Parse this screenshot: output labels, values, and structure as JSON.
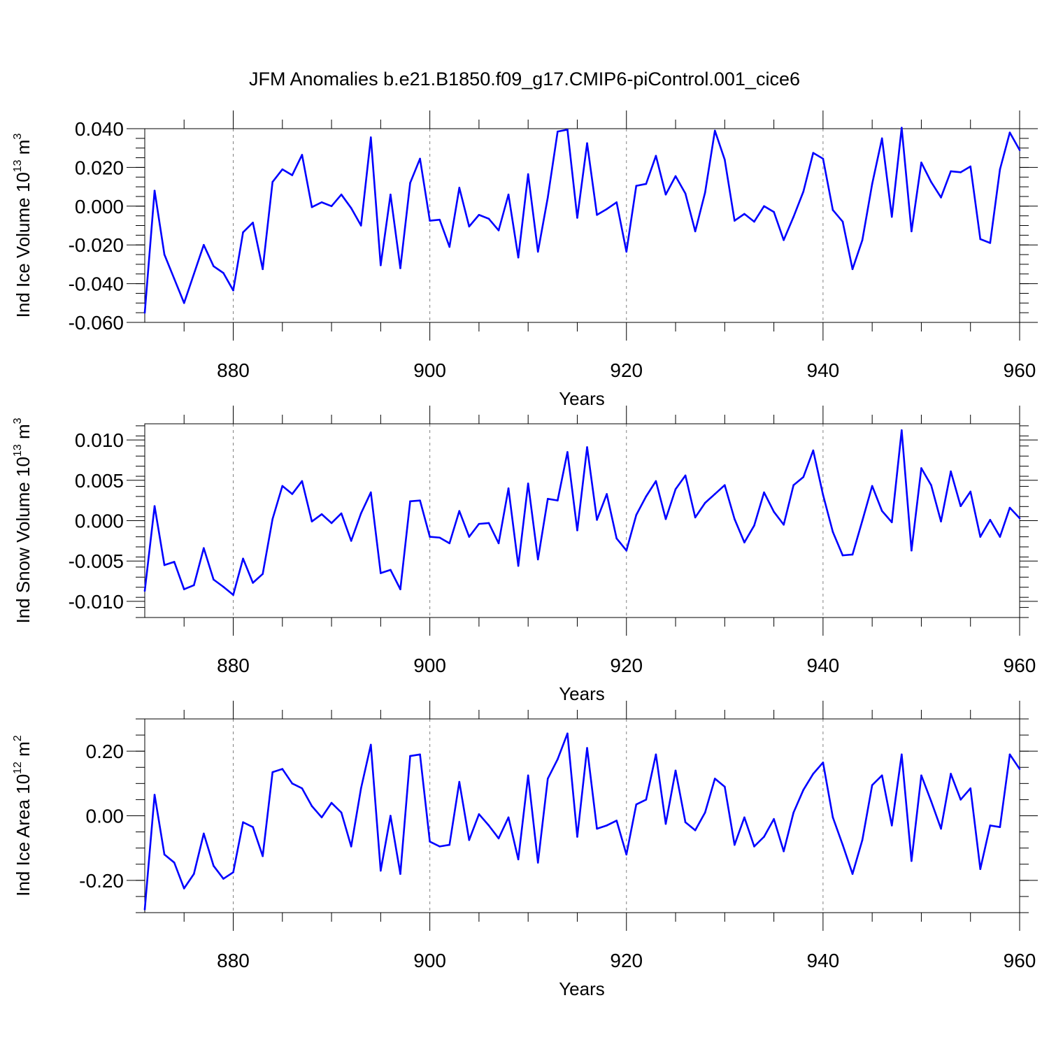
{
  "figure": {
    "title": "JFM Anomalies b.e21.B1850.f09_g17.CMIP6-piControl.001_cice6"
  },
  "colors": {
    "line": "#0000ff",
    "axis": "#000000",
    "grid": "#808080"
  },
  "chart_data": [
    {
      "type": "line",
      "ylabel_main": "Ind Ice Volume 10",
      "ylabel_exp": "13",
      "ylabel_unit": " m",
      "ylabel_unit_exp": "3",
      "xlabel": "Years",
      "xlim": [
        871,
        960
      ],
      "ylim": [
        -0.06,
        0.04
      ],
      "xticks": [
        880,
        900,
        920,
        940,
        960
      ],
      "xtick_labels": [
        "880",
        "900",
        "920",
        "940",
        "960"
      ],
      "yticks": [
        -0.06,
        -0.04,
        -0.02,
        0.0,
        0.02,
        0.04
      ],
      "ytick_labels": [
        "-0.060",
        "-0.040",
        "-0.020",
        "0.000",
        "0.020",
        "0.040"
      ],
      "grid_x": [
        880,
        900,
        920,
        940
      ],
      "x_start": 871,
      "values": [
        -0.055,
        0.008,
        -0.025,
        -0.0375,
        -0.05,
        -0.035,
        -0.02,
        -0.031,
        -0.0345,
        -0.0435,
        -0.0135,
        -0.0085,
        -0.0325,
        0.0125,
        0.019,
        0.016,
        0.0265,
        -0.0005,
        0.002,
        0.0,
        0.006,
        -0.001,
        -0.01,
        0.0355,
        -0.0305,
        0.006,
        -0.032,
        0.012,
        0.0245,
        -0.0075,
        -0.007,
        -0.021,
        0.0095,
        -0.0105,
        -0.0045,
        -0.0065,
        -0.0125,
        0.006,
        -0.0265,
        0.0165,
        -0.0235,
        0.0045,
        0.0385,
        0.0395,
        -0.006,
        0.0325,
        -0.0045,
        -0.0015,
        0.002,
        -0.0235,
        0.0105,
        0.0115,
        0.026,
        0.006,
        0.0155,
        0.0065,
        -0.013,
        0.007,
        0.039,
        0.024,
        -0.0075,
        -0.004,
        -0.008,
        0.0,
        -0.003,
        -0.0175,
        -0.0055,
        0.0075,
        0.0275,
        0.0245,
        -0.002,
        -0.008,
        -0.0325,
        -0.0175,
        0.0115,
        0.035,
        -0.0055,
        0.0405,
        -0.013,
        0.0225,
        0.0125,
        0.0045,
        0.018,
        0.0175,
        0.0205,
        -0.017,
        -0.019,
        0.019,
        0.038,
        0.029
      ]
    },
    {
      "type": "line",
      "ylabel_main": "Ind Snow Volume 10",
      "ylabel_exp": "13",
      "ylabel_unit": " m",
      "ylabel_unit_exp": "3",
      "xlabel": "Years",
      "xlim": [
        871,
        960
      ],
      "ylim": [
        -0.012,
        0.012
      ],
      "xticks": [
        880,
        900,
        920,
        940,
        960
      ],
      "xtick_labels": [
        "880",
        "900",
        "920",
        "940",
        "960"
      ],
      "yticks": [
        -0.01,
        -0.005,
        0.0,
        0.005,
        0.01
      ],
      "ytick_labels": [
        "-0.010",
        "-0.005",
        "0.000",
        "0.005",
        "0.010"
      ],
      "grid_x": [
        880,
        900,
        920,
        940
      ],
      "x_start": 871,
      "values": [
        -0.0087,
        0.0018,
        -0.0055,
        -0.0051,
        -0.0085,
        -0.008,
        -0.0034,
        -0.0073,
        -0.0082,
        -0.0092,
        -0.0047,
        -0.0077,
        -0.0066,
        0.0002,
        0.0043,
        0.0033,
        0.0049,
        -0.0001,
        0.0008,
        -0.0003,
        0.0009,
        -0.0025,
        0.0009,
        0.0035,
        -0.0065,
        -0.0061,
        -0.0085,
        0.0024,
        0.0025,
        -0.002,
        -0.0021,
        -0.0028,
        0.0012,
        -0.002,
        -0.0004,
        -0.0003,
        -0.0028,
        0.004,
        -0.0056,
        0.0046,
        -0.0048,
        0.0027,
        0.0025,
        0.0085,
        -0.0012,
        0.0091,
        0.0001,
        0.0033,
        -0.0022,
        -0.0037,
        0.0007,
        0.003,
        0.0049,
        0.0002,
        0.0039,
        0.0056,
        0.0004,
        0.0022,
        0.0033,
        0.0044,
        0.0002,
        -0.0027,
        -0.0006,
        0.0035,
        0.0011,
        -0.0005,
        0.0044,
        0.0054,
        0.0087,
        0.0032,
        -0.0014,
        -0.0043,
        -0.0042,
        0.0,
        0.0043,
        0.0012,
        -0.0002,
        0.0112,
        -0.0037,
        0.0065,
        0.0044,
        -0.0001,
        0.0061,
        0.0018,
        0.0036,
        -0.002,
        0.0001,
        -0.002,
        0.0016,
        0.0003
      ]
    },
    {
      "type": "line",
      "ylabel_main": "Ind Ice Area 10",
      "ylabel_exp": "12",
      "ylabel_unit": " m",
      "ylabel_unit_exp": "2",
      "xlabel": "Years",
      "xlim": [
        871,
        960
      ],
      "ylim": [
        -0.3,
        0.3
      ],
      "xticks": [
        880,
        900,
        920,
        940,
        960
      ],
      "xtick_labels": [
        "880",
        "900",
        "920",
        "940",
        "960"
      ],
      "yticks": [
        -0.2,
        0.0,
        0.2
      ],
      "ytick_labels": [
        "-0.20",
        "0.00",
        "0.20"
      ],
      "grid_x": [
        880,
        900,
        920,
        940
      ],
      "x_start": 871,
      "values": [
        -0.29,
        0.065,
        -0.12,
        -0.145,
        -0.225,
        -0.18,
        -0.055,
        -0.155,
        -0.195,
        -0.175,
        -0.02,
        -0.035,
        -0.125,
        0.135,
        0.145,
        0.1,
        0.085,
        0.03,
        -0.005,
        0.04,
        0.01,
        -0.095,
        0.085,
        0.22,
        -0.17,
        0.0,
        -0.18,
        0.185,
        0.19,
        -0.08,
        -0.095,
        -0.09,
        0.105,
        -0.075,
        0.005,
        -0.03,
        -0.07,
        -0.005,
        -0.135,
        0.125,
        -0.145,
        0.115,
        0.175,
        0.255,
        -0.065,
        0.21,
        -0.04,
        -0.03,
        -0.015,
        -0.12,
        0.035,
        0.05,
        0.19,
        -0.025,
        0.14,
        -0.02,
        -0.045,
        0.01,
        0.115,
        0.09,
        -0.09,
        -0.005,
        -0.095,
        -0.065,
        -0.01,
        -0.11,
        0.01,
        0.08,
        0.13,
        0.165,
        -0.005,
        -0.09,
        -0.18,
        -0.075,
        0.095,
        0.125,
        -0.03,
        0.19,
        -0.14,
        0.125,
        0.045,
        -0.04,
        0.13,
        0.05,
        0.085,
        -0.165,
        -0.03,
        -0.035,
        0.19,
        0.145
      ]
    }
  ]
}
